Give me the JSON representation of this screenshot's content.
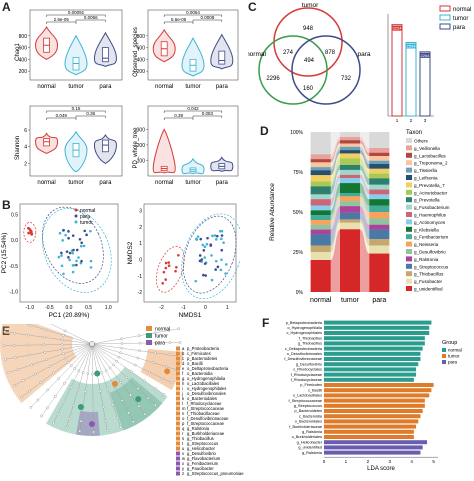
{
  "panels": {
    "a": {
      "label": "A"
    },
    "b": {
      "label": "B"
    },
    "c": {
      "label": "C"
    },
    "d": {
      "label": "D"
    },
    "e": {
      "label": "E"
    },
    "f": {
      "label": "F"
    }
  },
  "colors": {
    "normal": "#d73a36",
    "tumor": "#3db4d8",
    "para": "#3f4c8a",
    "tree_normal": "#e58a3a",
    "tree_para": "#8a5ab0"
  },
  "violin": {
    "groups": [
      "normal",
      "tumor",
      "para"
    ],
    "plots": [
      {
        "ylabel": "Chao1",
        "ticks": [
          200,
          400,
          600,
          800
        ],
        "ylim": [
          50,
          1000
        ],
        "pvals": [
          "2.9e-05",
          "0.00091",
          "0.0056"
        ],
        "medians": [
          640,
          330,
          420
        ],
        "q1": [
          520,
          220,
          360
        ],
        "q3": [
          760,
          430,
          600
        ],
        "min": [
          400,
          140,
          280
        ],
        "max": [
          950,
          800,
          850
        ]
      },
      {
        "ylabel": "Observed_species",
        "ticks": [
          200,
          400,
          600,
          800
        ],
        "ylim": [
          50,
          1000
        ],
        "pvals": [
          "5.6e-05",
          "0.0064",
          "0.0008"
        ],
        "medians": [
          580,
          300,
          380
        ],
        "q1": [
          460,
          200,
          320
        ],
        "q3": [
          700,
          400,
          540
        ],
        "min": [
          360,
          120,
          240
        ],
        "max": [
          900,
          760,
          820
        ]
      },
      {
        "ylabel": "Shannon",
        "ticks": [
          2,
          4,
          6
        ],
        "ylim": [
          0.5,
          7.2
        ],
        "pvals": [
          "0.049",
          "0.15",
          "0.36"
        ],
        "medians": [
          4.6,
          3.6,
          4.2
        ],
        "q1": [
          4.1,
          2.8,
          3.4
        ],
        "q3": [
          5.0,
          4.4,
          4.8
        ],
        "min": [
          3.2,
          1.0,
          2.0
        ],
        "max": [
          5.6,
          5.8,
          5.4
        ]
      },
      {
        "ylabel": "PD_whole_tree",
        "ticks": [
          100,
          200,
          300
        ],
        "ylim": [
          0,
          360
        ],
        "pvals": [
          "0.39",
          "0.042",
          "0.083"
        ],
        "medians": [
          48,
          40,
          62
        ],
        "q1": [
          36,
          28,
          46
        ],
        "q3": [
          62,
          52,
          80
        ],
        "min": [
          20,
          15,
          30
        ],
        "max": [
          300,
          110,
          120
        ]
      }
    ]
  },
  "pca": {
    "xlabel": "PC1 (20.89%)",
    "ylabel": "PC2 (15.54%)",
    "xticks": [
      -1.0,
      -0.5,
      0.0,
      0.5,
      1.0
    ],
    "yticks": [
      -1.0,
      -0.5,
      0.0,
      0.5
    ],
    "legend": [
      "normal",
      "para",
      "tumor"
    ]
  },
  "nmds": {
    "xlabel": "NMDS1",
    "ylabel": "NMDS2",
    "xticks": [
      -2,
      -1,
      0,
      1
    ],
    "yticks": [
      -2,
      -1,
      0,
      1,
      2,
      3
    ]
  },
  "venn": {
    "sets": [
      "tumor",
      "normal",
      "para"
    ],
    "regions": {
      "tumor_only": "948",
      "normal_only": "2296",
      "para_only": "732",
      "tumor_normal": "274",
      "tumor_para": "878",
      "normal_para": "160",
      "all": "494"
    }
  },
  "set_bar": {
    "legend": [
      "normal",
      "tumor",
      "para"
    ],
    "values": [
      3224,
      2594,
      2264
    ],
    "labels": [
      "3224",
      "2594",
      "2264"
    ],
    "xticks": [
      "1",
      "2",
      "3"
    ]
  },
  "abundance": {
    "ylabel": "Relative Abundance",
    "yticks": [
      "0%",
      "25%",
      "50%",
      "75%",
      "100%"
    ],
    "categories": [
      "normal",
      "tumor",
      "para"
    ],
    "taxon_title": "Taxon",
    "taxa": [
      "Others",
      "g_Veillonella",
      "g_Lactobacillus",
      "g_Treponema_2",
      "g_Tissierlla",
      "g_Leifsonia",
      "g_Prevotella_7",
      "g_Acinetobacter",
      "g_Prevotella",
      "g_Fusobacterium",
      "g_Haemophilus",
      "g_Actinomyces",
      "g_Klebsiella",
      "g_Fenibacterium",
      "g_Neisseria",
      "g_Desulfovibrio",
      "g_Ralstonia",
      "g_Streptococcus",
      "g_Thiobacillus",
      "g_Fusobacter",
      "g_unidentified"
    ],
    "taxa_colors": [
      "#d9d9d9",
      "#e7a29a",
      "#b2473e",
      "#f7c59f",
      "#6a9fb5",
      "#264e70",
      "#f0d060",
      "#a7c957",
      "#2f7f6f",
      "#9fd8cb",
      "#cc6677",
      "#88ccee",
      "#117733",
      "#44aa99",
      "#f7a35c",
      "#90c3a0",
      "#aa4499",
      "#4b79a5",
      "#c7a86c",
      "#e8e0b0",
      "#d62728"
    ],
    "values": {
      "normal": [
        14,
        3,
        2,
        3,
        2,
        3,
        4,
        3,
        5,
        3,
        4,
        3,
        3,
        3,
        3,
        3,
        3,
        7,
        4,
        5,
        20
      ],
      "tumor": [
        3,
        2,
        2,
        2,
        2,
        2,
        3,
        4,
        3,
        3,
        2,
        3,
        6,
        2,
        3,
        3,
        4,
        4,
        2,
        4,
        38
      ],
      "para": [
        10,
        3,
        2,
        3,
        2,
        3,
        3,
        3,
        4,
        3,
        3,
        3,
        4,
        4,
        4,
        4,
        3,
        6,
        4,
        5,
        24
      ]
    }
  },
  "clado": {
    "legend": [
      "normal",
      "tumor",
      "para"
    ],
    "items": [
      {
        "k": "a",
        "t": "p_Proteobacteria",
        "c": "tree_normal"
      },
      {
        "k": "b",
        "t": "c_Firmicutes",
        "c": "tree_normal"
      },
      {
        "k": "c",
        "t": "p_Bacteroidetes",
        "c": "tree_normal"
      },
      {
        "k": "d",
        "t": "o_Bacilli",
        "c": "tree_normal"
      },
      {
        "k": "e",
        "t": "o_Deltaproteobacteria",
        "c": "tree_normal"
      },
      {
        "k": "f",
        "t": "o_Bacteroidia",
        "c": "tree_normal"
      },
      {
        "k": "g",
        "t": "o_Hydrogenophilalia",
        "c": "tree_normal"
      },
      {
        "k": "h",
        "t": "o_Lactobacillales",
        "c": "tree_normal"
      },
      {
        "k": "i",
        "t": "o_Hydrogenophilales",
        "c": "tree_normal"
      },
      {
        "k": "j",
        "t": "o_Desulfovibrionales",
        "c": "tree_normal"
      },
      {
        "k": "k",
        "t": "o_Bacteroidales",
        "c": "tree_normal"
      },
      {
        "k": "l",
        "t": "f_Rhodocyclaceae",
        "c": "tree_normal"
      },
      {
        "k": "m",
        "t": "f_Streptococcaceae",
        "c": "tree_normal"
      },
      {
        "k": "n",
        "t": "f_Thiobacillaceae",
        "c": "tree_normal"
      },
      {
        "k": "o",
        "t": "f_Desulfovibrionaceae",
        "c": "tree_normal"
      },
      {
        "k": "p",
        "t": "f_Streptococcaceae",
        "c": "tree_normal"
      },
      {
        "k": "q",
        "t": "g_Ralstonia",
        "c": "tree_normal"
      },
      {
        "k": "r",
        "t": "g_Burkholderiaceae",
        "c": "tree_normal"
      },
      {
        "k": "s",
        "t": "g_Thiobacillus",
        "c": "tree_normal"
      },
      {
        "k": "t",
        "t": "g_Streptococcus",
        "c": "tree_normal"
      },
      {
        "k": "u",
        "t": "g_Helicobacter",
        "c": "tree_normal"
      },
      {
        "k": "v",
        "t": "g_Desulfovibrio",
        "c": "tree_para"
      },
      {
        "k": "w",
        "t": "g_Flavobacterium",
        "c": "tree_para"
      },
      {
        "k": "x",
        "t": "g_Fenibacterium",
        "c": "tree_para"
      },
      {
        "k": "y",
        "t": "g_Paucibacter",
        "c": "tree_para"
      },
      {
        "k": "z",
        "t": "g_Streptococcus_pneumoniae",
        "c": "tree_para"
      }
    ]
  },
  "lda": {
    "xlabel": "LDA score",
    "xticks": [
      0,
      1,
      2,
      3,
      4,
      5
    ],
    "group_title": "Group",
    "legend": [
      "normal",
      "tumor",
      "para"
    ],
    "bars": [
      {
        "label": "p_Betaproteobacteria",
        "v": 4.9,
        "g": "normal"
      },
      {
        "label": "o_Hydrogenophilalia",
        "v": 4.8,
        "g": "normal"
      },
      {
        "label": "c_Hydrogenophilales",
        "v": 4.8,
        "g": "normal"
      },
      {
        "label": "f_Thiobacillus",
        "v": 4.6,
        "g": "normal"
      },
      {
        "label": "g_Thiobacillus",
        "v": 4.6,
        "g": "normal"
      },
      {
        "label": "c_Deltaproteobacteria",
        "v": 4.5,
        "g": "normal"
      },
      {
        "label": "o_Desulfovibrionales",
        "v": 4.4,
        "g": "normal"
      },
      {
        "label": "f_Desulfovibrionaceae",
        "v": 4.4,
        "g": "normal"
      },
      {
        "label": "g_Desulfovibrio",
        "v": 4.3,
        "g": "normal"
      },
      {
        "label": "c_Rhodocyclales",
        "v": 4.2,
        "g": "normal"
      },
      {
        "label": "f_Rhodocyclaceae",
        "v": 4.2,
        "g": "normal"
      },
      {
        "label": "f_Rhodocyclaceae",
        "v": 4.1,
        "g": "normal"
      },
      {
        "label": "p_Firmicutes",
        "v": 5.0,
        "g": "tumor"
      },
      {
        "label": "c_Bacilli",
        "v": 4.9,
        "g": "tumor"
      },
      {
        "label": "o_Lactobacillales",
        "v": 4.8,
        "g": "tumor"
      },
      {
        "label": "f_Streptococcaceae",
        "v": 4.6,
        "g": "tumor"
      },
      {
        "label": "g_Streptococcus",
        "v": 4.6,
        "g": "tumor"
      },
      {
        "label": "p_Bacteroidetes",
        "v": 4.5,
        "g": "tumor"
      },
      {
        "label": "c_Bacteroidia",
        "v": 4.4,
        "g": "tumor"
      },
      {
        "label": "o_Bacteroidales",
        "v": 4.3,
        "g": "tumor"
      },
      {
        "label": "f_Burkholderiaceae",
        "v": 4.2,
        "g": "tumor"
      },
      {
        "label": "g_Ralstonia",
        "v": 4.1,
        "g": "tumor"
      },
      {
        "label": "o_Burkholderiales",
        "v": 4.1,
        "g": "tumor"
      },
      {
        "label": "g_Helicobacter",
        "v": 4.7,
        "g": "para"
      },
      {
        "label": "g_unidentified",
        "v": 4.5,
        "g": "para"
      },
      {
        "label": "g_Ralstonia",
        "v": 4.4,
        "g": "para"
      }
    ]
  }
}
